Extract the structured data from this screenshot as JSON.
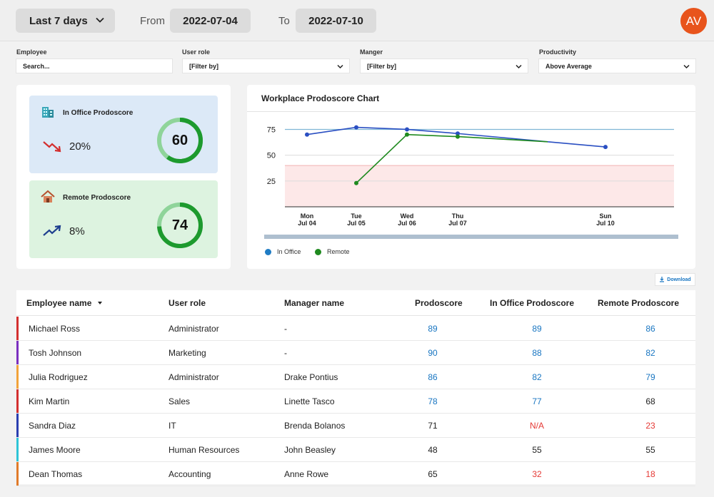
{
  "header": {
    "range_label": "Last 7 days",
    "from_label": "From",
    "from_date": "2022-07-04",
    "to_label": "To",
    "to_date": "2022-07-10",
    "avatar_initials": "AV",
    "avatar_color": "#e8541c"
  },
  "filters": {
    "employee_label": "Employee",
    "employee_placeholder": "Search...",
    "user_role_label": "User role",
    "user_role_value": "[Filter by]",
    "manager_label": "Manger",
    "manager_value": "[Filter by]",
    "productivity_label": "Productivity",
    "productivity_value": "Above Average"
  },
  "scores": {
    "office": {
      "title": "In Office Prodoscore",
      "trend": "20%",
      "trend_dir": "down",
      "value": "60",
      "progress": 0.6
    },
    "remote": {
      "title": "Remote Prodoscore",
      "trend": "8%",
      "trend_dir": "up",
      "value": "74",
      "progress": 0.74
    }
  },
  "chart": {
    "title": "Workplace Prodoscore Chart",
    "legend_office": "In Office",
    "legend_remote": "Remote",
    "office_color": "#2a4fc2",
    "remote_color": "#1f8a1f"
  },
  "chart_data": {
    "type": "line",
    "title": "Workplace Prodoscore Chart",
    "yticks": [
      "75",
      "50",
      "25"
    ],
    "xticks": [
      {
        "day": "Mon",
        "date": "Jul 04"
      },
      {
        "day": "Tue",
        "date": "Jul 05"
      },
      {
        "day": "Wed",
        "date": "Jul 06"
      },
      {
        "day": "Thu",
        "date": "Jul 07"
      },
      {
        "day": "Sun",
        "date": "Jul 10"
      }
    ],
    "ylim": [
      0,
      85
    ],
    "series": [
      {
        "name": "In Office",
        "points": [
          [
            "Jul 04",
            70
          ],
          [
            "Jul 05",
            77
          ],
          [
            "Jul 06",
            75
          ],
          [
            "Jul 07",
            71
          ],
          [
            "Jul 09",
            63
          ],
          [
            "Jul 10",
            58
          ]
        ]
      },
      {
        "name": "Remote",
        "points": [
          [
            "Jul 05",
            23
          ],
          [
            "Jul 06",
            70
          ],
          [
            "Jul 07",
            68
          ],
          [
            "Jul 09",
            63
          ]
        ]
      }
    ],
    "target_line": 75,
    "low_band": [
      0,
      40
    ],
    "legend_position": "bottom-left"
  },
  "download_label": "Download",
  "table": {
    "headers": [
      "Employee name",
      "User role",
      "Manager name",
      "Prodoscore",
      "In Office Prodoscore",
      "Remote Prodoscore"
    ],
    "rows": [
      {
        "name": "Michael Ross",
        "role": "Administrator",
        "manager": "-",
        "prodoscore": "89",
        "office": "89",
        "remote": "86",
        "bar": "#d32f2f",
        "c1": "#1976c2",
        "c2": "#1976c2",
        "c3": "#1976c2"
      },
      {
        "name": "Tosh Johnson",
        "role": "Marketing",
        "manager": "-",
        "prodoscore": "90",
        "office": "88",
        "remote": "82",
        "bar": "#7b2fbf",
        "c1": "#1976c2",
        "c2": "#1976c2",
        "c3": "#1976c2"
      },
      {
        "name": "Julia Rodriguez",
        "role": "Administrator",
        "manager": "Drake Pontius",
        "prodoscore": "86",
        "office": "82",
        "remote": "79",
        "bar": "#f2a33a",
        "c1": "#1976c2",
        "c2": "#1976c2",
        "c3": "#1976c2"
      },
      {
        "name": "Kim Martin",
        "role": "Sales",
        "manager": "Linette Tasco",
        "prodoscore": "78",
        "office": "77",
        "remote": "68",
        "bar": "#d32f2f",
        "c1": "#1976c2",
        "c2": "#1976c2",
        "c3": "#222222"
      },
      {
        "name": "Sandra Diaz",
        "role": "IT",
        "manager": "Brenda Bolanos",
        "prodoscore": "71",
        "office": "N/A",
        "remote": "23",
        "bar": "#2a3fb0",
        "c1": "#222222",
        "c2": "#e53935",
        "c3": "#e53935"
      },
      {
        "name": "James Moore",
        "role": "Human Resources",
        "manager": "John Beasley",
        "prodoscore": "48",
        "office": "55",
        "remote": "55",
        "bar": "#2ec4d6",
        "c1": "#222222",
        "c2": "#222222",
        "c3": "#222222"
      },
      {
        "name": "Dean Thomas",
        "role": "Accounting",
        "manager": "Anne Rowe",
        "prodoscore": "65",
        "office": "32",
        "remote": "18",
        "bar": "#e07b2a",
        "c1": "#222222",
        "c2": "#e53935",
        "c3": "#e53935"
      }
    ]
  }
}
